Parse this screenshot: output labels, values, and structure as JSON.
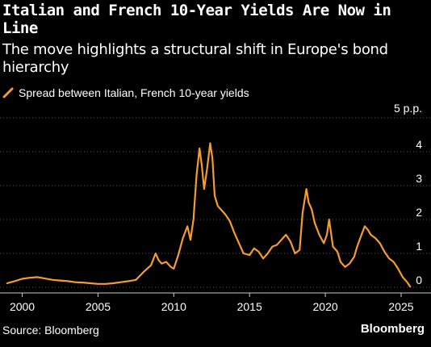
{
  "header": {
    "title": "Italian and French 10-Year Yields Are Now in Line",
    "subtitle": "The move highlights a structural shift in Europe's bond hierarchy"
  },
  "legend": {
    "label": "Spread between Italian, French 10-year yields"
  },
  "unit_label": "5 p.p.",
  "footer": {
    "source": "Source: Bloomberg",
    "brand": "Bloomberg"
  },
  "colors": {
    "series": "#f39c34",
    "background": "#000000",
    "grid": "#555555",
    "text": "#ffffff"
  },
  "chart_data": {
    "type": "line",
    "title": "Italian and French 10-Year Yields Are Now in Line",
    "subtitle": "The move highlights a structural shift in Europe's bond hierarchy",
    "xlabel": "",
    "ylabel": "",
    "xlim": [
      1998.8,
      2025.8
    ],
    "ylim": [
      0,
      5
    ],
    "x_ticks": [
      2000,
      2005,
      2010,
      2015,
      2020,
      2025
    ],
    "y_ticks": [
      0,
      1,
      2,
      3,
      4
    ],
    "y_unit": "p.p.",
    "grid": true,
    "legend_position": "top-left",
    "series": [
      {
        "name": "Spread between Italian, French 10-year yields",
        "x": [
          1999.0,
          1999.5,
          2000.0,
          2000.5,
          2001.0,
          2001.5,
          2002.0,
          2002.5,
          2003.0,
          2003.5,
          2004.0,
          2004.5,
          2005.0,
          2005.5,
          2006.0,
          2006.5,
          2007.0,
          2007.5,
          2008.0,
          2008.5,
          2008.8,
          2009.0,
          2009.2,
          2009.5,
          2009.8,
          2010.0,
          2010.3,
          2010.6,
          2010.9,
          2011.1,
          2011.3,
          2011.5,
          2011.7,
          2011.85,
          2012.0,
          2012.2,
          2012.4,
          2012.55,
          2012.7,
          2012.9,
          2013.1,
          2013.4,
          2013.7,
          2014.0,
          2014.3,
          2014.6,
          2015.0,
          2015.3,
          2015.6,
          2015.9,
          2016.2,
          2016.5,
          2016.8,
          2017.1,
          2017.4,
          2017.7,
          2018.0,
          2018.3,
          2018.5,
          2018.75,
          2018.9,
          2019.1,
          2019.3,
          2019.6,
          2019.9,
          2020.1,
          2020.25,
          2020.5,
          2020.8,
          2021.0,
          2021.3,
          2021.6,
          2021.9,
          2022.1,
          2022.3,
          2022.6,
          2022.8,
          2023.0,
          2023.3,
          2023.6,
          2023.9,
          2024.2,
          2024.5,
          2024.8,
          2025.1,
          2025.4,
          2025.6
        ],
        "values": [
          0.12,
          0.18,
          0.25,
          0.28,
          0.3,
          0.26,
          0.22,
          0.2,
          0.18,
          0.15,
          0.14,
          0.12,
          0.1,
          0.1,
          0.12,
          0.15,
          0.18,
          0.22,
          0.45,
          0.65,
          1.0,
          0.8,
          0.7,
          0.75,
          0.6,
          0.55,
          0.95,
          1.45,
          1.8,
          1.4,
          2.0,
          3.3,
          4.1,
          3.6,
          2.9,
          3.5,
          4.25,
          3.8,
          2.7,
          2.4,
          2.3,
          2.15,
          1.95,
          1.6,
          1.3,
          1.0,
          0.95,
          1.15,
          1.05,
          0.85,
          1.0,
          1.2,
          1.25,
          1.4,
          1.55,
          1.35,
          1.0,
          1.1,
          2.2,
          2.9,
          2.5,
          2.3,
          1.9,
          1.55,
          1.3,
          1.55,
          2.0,
          1.2,
          1.05,
          0.75,
          0.6,
          0.7,
          0.9,
          1.2,
          1.45,
          1.8,
          1.7,
          1.55,
          1.45,
          1.3,
          1.05,
          0.85,
          0.75,
          0.55,
          0.3,
          0.15,
          0.02
        ]
      }
    ]
  }
}
